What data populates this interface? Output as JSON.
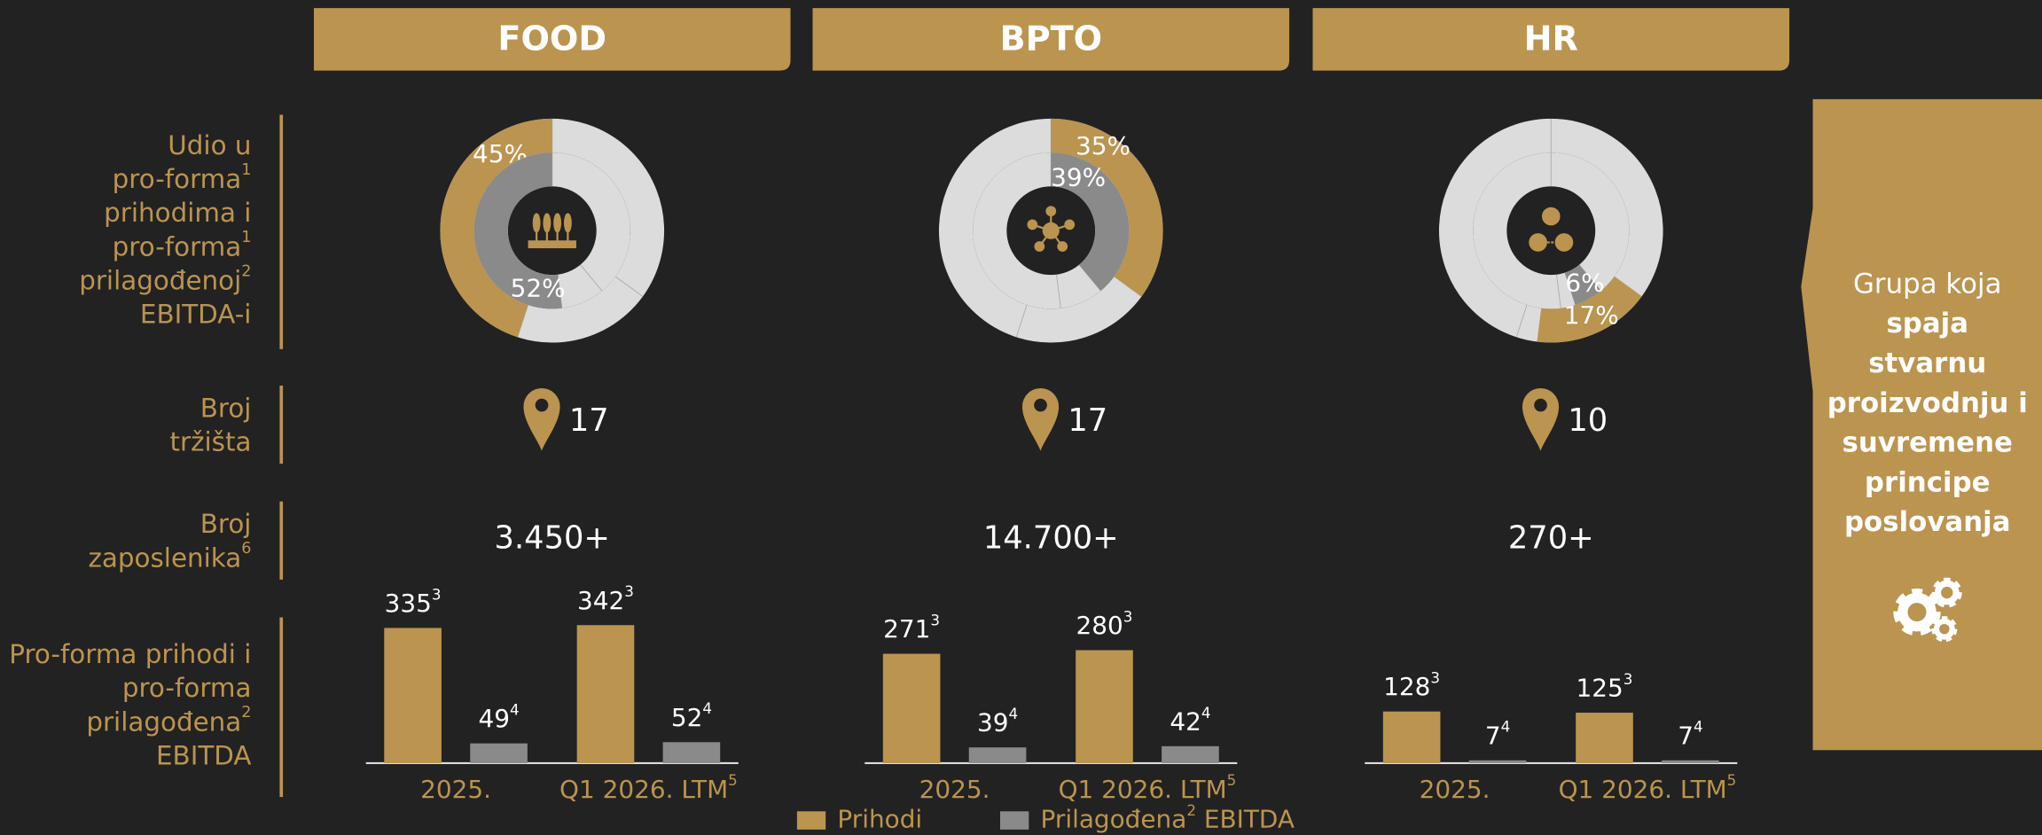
{
  "segments": [
    {
      "title": "FOOD",
      "icon": "wheat",
      "revenue_share": {
        "value": 45,
        "label": "45%"
      },
      "ebitda_share": {
        "value": 52,
        "label": "52%"
      },
      "markets": 17,
      "employees": "3.450+",
      "revenue": [
        335,
        342
      ],
      "revenue_note": "3",
      "ebitda": [
        49,
        52
      ],
      "ebitda_note": "4"
    },
    {
      "title": "BPTO",
      "icon": "network",
      "revenue_share": {
        "value": 35,
        "label": "35%"
      },
      "ebitda_share": {
        "value": 39,
        "label": "39%"
      },
      "markets": 17,
      "employees": "14.700+",
      "revenue": [
        271,
        280
      ],
      "revenue_note": "3",
      "ebitda": [
        39,
        42
      ],
      "ebitda_note": "4"
    },
    {
      "title": "HR",
      "icon": "people",
      "revenue_share": {
        "value": 17,
        "label": "17%"
      },
      "ebitda_share": {
        "value": 6,
        "label": "6%"
      },
      "markets": 10,
      "employees": "270+",
      "revenue": [
        128,
        125
      ],
      "revenue_note": "3",
      "ebitda": [
        7,
        7
      ],
      "ebitda_note": "4"
    }
  ],
  "bar_categories": [
    [
      "2025."
    ],
    [
      "Q1 2026. LTM",
      "5"
    ]
  ],
  "row_labels": [
    [
      [
        "Udio u"
      ],
      [
        "pro-forma",
        "1"
      ],
      [
        "prihodima i"
      ],
      [
        "pro-forma",
        "1"
      ],
      [
        "prilagođenoj",
        "2"
      ],
      [
        "EBITDA-i"
      ]
    ],
    [
      [
        "Broj"
      ],
      [
        "tržišta"
      ]
    ],
    [
      [
        "Broj"
      ],
      [
        "zaposlenika",
        "6"
      ]
    ],
    [
      [
        "Pro-forma prihodi i"
      ],
      [
        "pro-forma"
      ],
      [
        "prilagođena",
        "2"
      ],
      [
        "EBITDA"
      ]
    ]
  ],
  "legend": [
    {
      "pieces": [
        "Prihodi"
      ],
      "color": "#bb944f"
    },
    {
      "pieces": [
        "Prilagođena",
        "2",
        " EBITDA"
      ],
      "color": "#8a8a8a"
    }
  ],
  "side_panel": [
    {
      "text": "Grupa koja",
      "bold": false
    },
    {
      "text": "spaja",
      "bold": true
    },
    {
      "text": "stvarnu",
      "bold": true
    },
    {
      "text": "proizvodnju i",
      "bold": true
    },
    {
      "text": "suvremene",
      "bold": true
    },
    {
      "text": "principe",
      "bold": true
    },
    {
      "text": "poslovanja",
      "bold": true
    }
  ]
}
